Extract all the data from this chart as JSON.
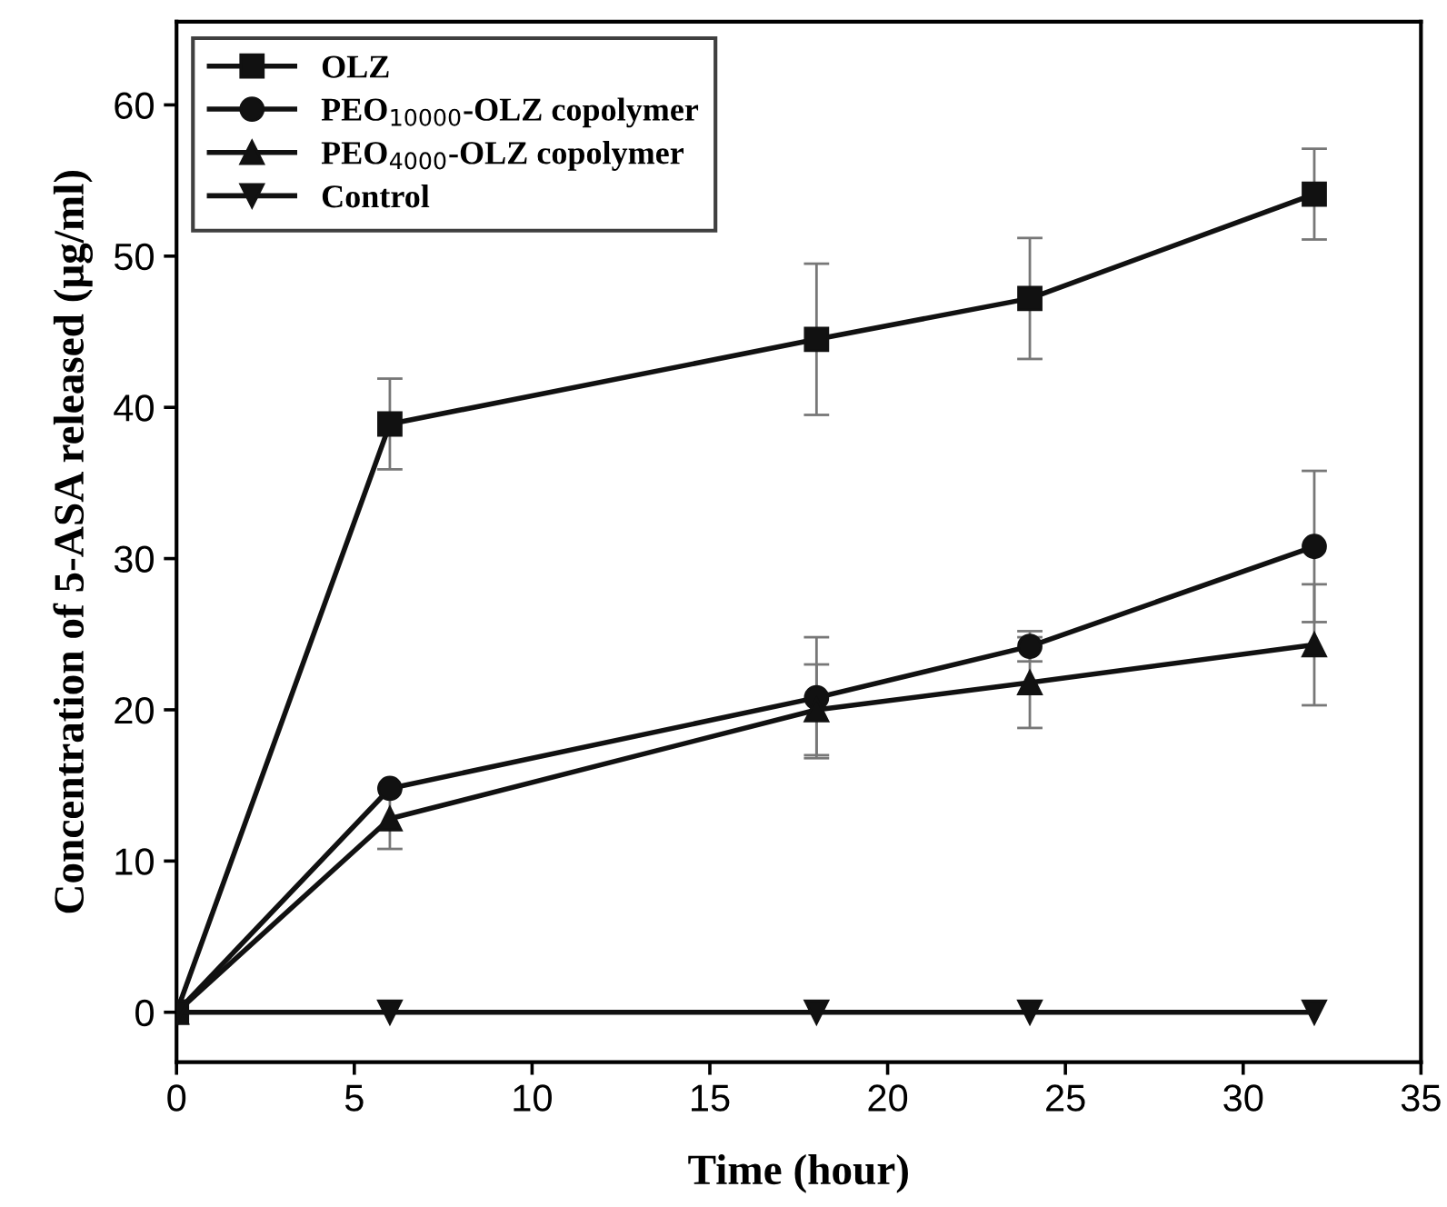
{
  "chart_data": {
    "type": "line",
    "xlabel": "Time (hour)",
    "ylabel": "Concentration of 5-ASA released (μg/ml)",
    "x": [
      0,
      6,
      18,
      24,
      32
    ],
    "xlim": [
      0,
      35
    ],
    "xticks": [
      0,
      5,
      10,
      15,
      20,
      25,
      30,
      35
    ],
    "ylim": [
      -3.3,
      65.5
    ],
    "yticks": [
      0,
      10,
      20,
      30,
      40,
      50,
      60
    ],
    "legend": "top left",
    "grid": false,
    "line_style": "solid",
    "series": [
      {
        "name": "OLZ",
        "color": "#111111",
        "marker": "square",
        "values": [
          0,
          38.9,
          44.5,
          47.2,
          54.1
        ],
        "errors": [
          null,
          3,
          5,
          4,
          3
        ]
      },
      {
        "name": "PEO$_{10000}$-OLZ copolymer",
        "color": "#111111",
        "marker": "circle",
        "values": [
          0,
          14.8,
          20.8,
          24.2,
          30.8
        ],
        "errors": [
          null,
          null,
          4,
          1,
          5
        ]
      },
      {
        "name": "PEO$_{4000}$-OLZ copolymer",
        "color": "#111111",
        "marker": "triangle",
        "values": [
          0,
          12.8,
          20,
          21.8,
          24.3
        ],
        "errors": [
          null,
          2,
          3,
          3,
          4
        ]
      },
      {
        "name": "Control",
        "color": "#111111",
        "marker": "triangle_down",
        "values": [
          0,
          0,
          0,
          0,
          0
        ]
      }
    ]
  }
}
